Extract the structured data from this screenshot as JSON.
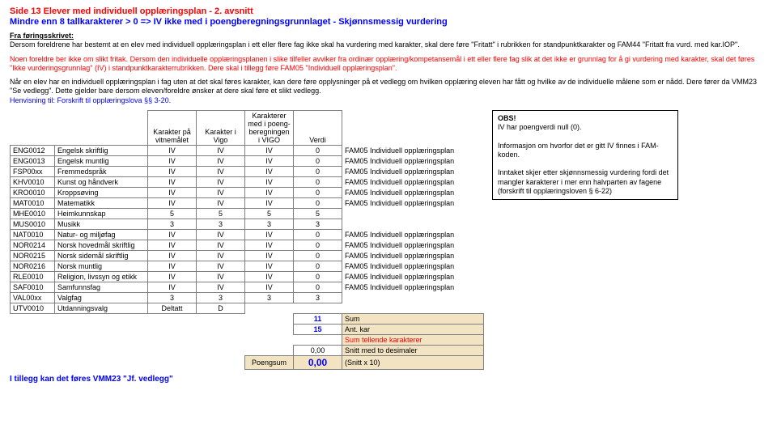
{
  "header": {
    "line1": "Side 13    Elever med individuell opplæringsplan - 2. avsnitt",
    "line2": "Mindre enn 8 tallkarakterer > 0 => IV ikke med i poengberegningsgrunnlaget - Skjønnsmessig vurdering"
  },
  "intro": {
    "title": "Fra føringsskrivet:",
    "p1": "Dersom foreldrene har bestemt at en elev med individuell opplæringsplan i ett eller flere fag ikke skal ha vurdering med karakter, skal dere føre \"Fritatt\" i rubrikken for standpunktkarakter og FAM44 \"Fritatt fra vurd. med kar.IOP\".",
    "p2a": "Noen foreldre ber ikke om slikt fritak.",
    "p2b": " Dersom den individuelle opplæringsplanen i slike tilfeller avviker fra ordinær opplæring/kompetansemål i ett eller flere fag slik at det ikke er grunnlag for å gi vurdering med karakter, skal det føres \"Ikke vurderingsgrunnlag\" (IV) i standpunktkarakterrubrikken. Dere skal i tillegg føre FAM05 \"Individuell opplæringsplan\".",
    "p3": "Når en elev har en individuell opplæringsplan i fag uten at det skal føres karakter, kan dere føre opplysninger på et vedlegg om hvilken opplæring eleven har fått og hvilke av de individuelle målene som er nådd. Dere fører da VMM23 \"Se vedlegg\". Dette gjelder bare dersom eleven/foreldre ønsker at dere skal føre et slikt vedlegg.",
    "link": "Henvisning til: Forskrift til opplæringslova §§ 3-20."
  },
  "columns": {
    "c1": "Karakter på vitnemålet",
    "c2": "Karakter i Vigo",
    "c3": "Karakterer med i poeng-beregningen i VIGO",
    "c4": "Verdi"
  },
  "rows": [
    {
      "code": "ENG0012",
      "name": "Engelsk skriftlig",
      "k1": "IV",
      "k2": "IV",
      "k3": "IV",
      "v": "0",
      "note": "FAM05 Individuell opplæringsplan"
    },
    {
      "code": "ENG0013",
      "name": "Engelsk muntlig",
      "k1": "IV",
      "k2": "IV",
      "k3": "IV",
      "v": "0",
      "note": "FAM05 Individuell opplæringsplan"
    },
    {
      "code": "FSP00xx",
      "name": "Fremmedspråk",
      "k1": "IV",
      "k2": "IV",
      "k3": "IV",
      "v": "0",
      "note": "FAM05 Individuell opplæringsplan"
    },
    {
      "code": "KHV0010",
      "name": "Kunst og håndverk",
      "k1": "IV",
      "k2": "IV",
      "k3": "IV",
      "v": "0",
      "note": "FAM05 Individuell opplæringsplan"
    },
    {
      "code": "KRO0010",
      "name": "Kroppsøving",
      "k1": "IV",
      "k2": "IV",
      "k3": "IV",
      "v": "0",
      "note": "FAM05 Individuell opplæringsplan"
    },
    {
      "code": "MAT0010",
      "name": "Matematikk",
      "k1": "IV",
      "k2": "IV",
      "k3": "IV",
      "v": "0",
      "note": "FAM05 Individuell opplæringsplan"
    },
    {
      "code": "MHE0010",
      "name": "Heimkunnskap",
      "k1": "5",
      "k2": "5",
      "k3": "5",
      "v": "5",
      "note": ""
    },
    {
      "code": "MUS0010",
      "name": "Musikk",
      "k1": "3",
      "k2": "3",
      "k3": "3",
      "v": "3",
      "note": ""
    },
    {
      "code": "NAT0010",
      "name": "Natur- og miljøfag",
      "k1": "IV",
      "k2": "IV",
      "k3": "IV",
      "v": "0",
      "note": "FAM05 Individuell opplæringsplan"
    },
    {
      "code": "NOR0214",
      "name": "Norsk hovedmål skriftlig",
      "k1": "IV",
      "k2": "IV",
      "k3": "IV",
      "v": "0",
      "note": "FAM05 Individuell opplæringsplan"
    },
    {
      "code": "NOR0215",
      "name": "Norsk sidemål skriftlig",
      "k1": "IV",
      "k2": "IV",
      "k3": "IV",
      "v": "0",
      "note": "FAM05 Individuell opplæringsplan"
    },
    {
      "code": "NOR0216",
      "name": "Norsk muntlig",
      "k1": "IV",
      "k2": "IV",
      "k3": "IV",
      "v": "0",
      "note": "FAM05 Individuell opplæringsplan"
    },
    {
      "code": "RLE0010",
      "name": "Religion, livssyn og etikk",
      "k1": "IV",
      "k2": "IV",
      "k3": "IV",
      "v": "0",
      "note": "FAM05 Individuell opplæringsplan"
    },
    {
      "code": "SAF0010",
      "name": "Samfunnsfag",
      "k1": "IV",
      "k2": "IV",
      "k3": "IV",
      "v": "0",
      "note": "FAM05 Individuell opplæringsplan"
    },
    {
      "code": "VAL00xx",
      "name": "Valgfag",
      "k1": "3",
      "k2": "3",
      "k3": "3",
      "v": "3",
      "note": ""
    },
    {
      "code": "UTV0010",
      "name": "Utdanningsvalg",
      "k1": "Deltatt",
      "k2": "D",
      "k3": "",
      "v": "",
      "note": ""
    }
  ],
  "summary": {
    "sum_v": "11",
    "sum_l": "Sum",
    "ant_v": "15",
    "ant_l": "Ant. kar",
    "stk_l": "Sum tellende karakterer",
    "snitt_v": "0,00",
    "snitt_l": "Snitt med to desimaler",
    "ps_label": "Poengsum",
    "ps_v": "0,00",
    "ps_l": "(Snitt x 10)"
  },
  "obs": {
    "title": "OBS!",
    "l1": "IV har poengverdi null (0).",
    "l2": "Informasjon om hvorfor det er gitt IV finnes i  FAM-koden.",
    "l3": "Inntaket skjer etter skjønnsmessig vurdering fordi det mangler karakterer i mer enn halvparten av fagene (forskrift til opplæringsloven § 6-22)"
  },
  "footer": "I tillegg kan det føres VMM23 \"Jf. vedlegg\""
}
